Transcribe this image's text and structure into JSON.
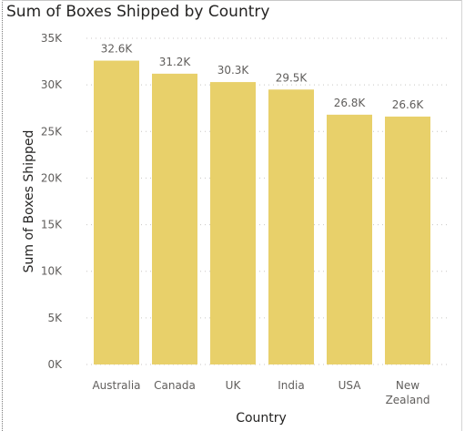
{
  "chart_data": {
    "type": "bar",
    "title": "Sum of Boxes Shipped by Country",
    "xlabel": "Country",
    "ylabel": "Sum of Boxes Shipped",
    "categories": [
      "Australia",
      "Canada",
      "UK",
      "India",
      "USA",
      "New Zealand"
    ],
    "values": [
      32600,
      31200,
      30300,
      29500,
      26800,
      26600
    ],
    "data_labels": [
      "32.6K",
      "31.2K",
      "30.3K",
      "29.5K",
      "26.8K",
      "26.6K"
    ],
    "ylim": [
      0,
      35000
    ],
    "y_ticks": [
      0,
      5000,
      10000,
      15000,
      20000,
      25000,
      30000,
      35000
    ],
    "y_tick_labels": [
      "0K",
      "5K",
      "10K",
      "15K",
      "20K",
      "25K",
      "30K",
      "35K"
    ],
    "bar_color": "#E8D06A",
    "grid": true,
    "legend": "none"
  }
}
